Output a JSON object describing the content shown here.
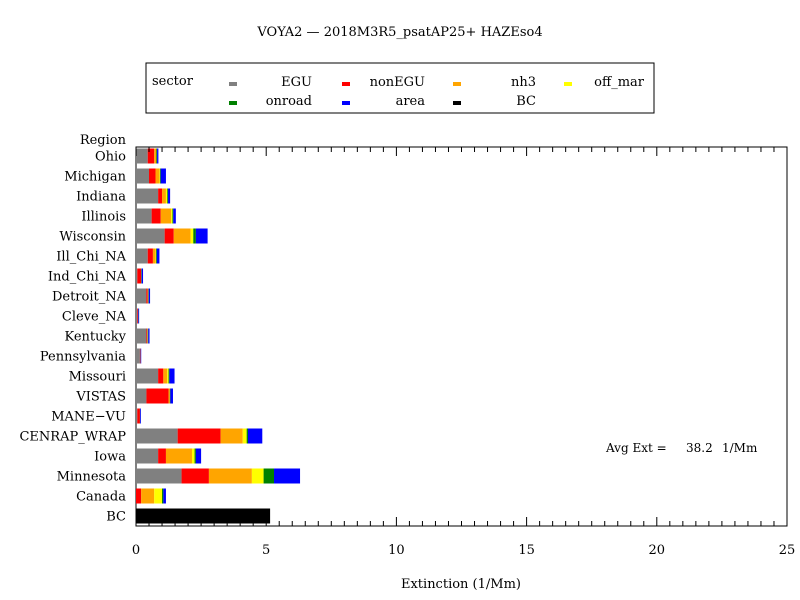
{
  "chart_data": {
    "type": "bar",
    "orientation": "horizontal",
    "stacked": true,
    "title": "VOYA2 — 2018M3R5_psatAP25+ HAZEso4",
    "xlabel": "Extinction (1/Mm)",
    "ylabel": "Region",
    "xlim": [
      0,
      25
    ],
    "x_ticks": [
      0,
      5,
      10,
      15,
      20,
      25
    ],
    "grid": false,
    "legend": {
      "title": "sector",
      "placement": "top",
      "entries": [
        "EGU",
        "nonEGU",
        "nh3",
        "off_mar",
        "onroad",
        "area",
        "BC"
      ]
    },
    "annotation": {
      "label": "Avg Ext =",
      "value": "38.2",
      "unit": "1/Mm"
    },
    "categories": [
      "Ohio",
      "Michigan",
      "Indiana",
      "Illinois",
      "Wisconsin",
      "Ill_Chi_NA",
      "Ind_Chi_NA",
      "Detroit_NA",
      "Cleve_NA",
      "Kentucky",
      "Pennsylvania",
      "Missouri",
      "VISTAS",
      "MANE−VU",
      "CENRAP_WRAP",
      "Iowa",
      "Minnesota",
      "Canada",
      "BC"
    ],
    "series": [
      {
        "name": "EGU",
        "color": "#808080",
        "values": [
          0.45,
          0.5,
          0.85,
          0.6,
          1.1,
          0.45,
          0.05,
          0.4,
          0.05,
          0.4,
          0.15,
          0.85,
          0.4,
          0.05,
          1.6,
          0.85,
          1.75,
          0.0,
          0.0
        ]
      },
      {
        "name": "nonEGU",
        "color": "#ff0000",
        "values": [
          0.25,
          0.25,
          0.15,
          0.35,
          0.35,
          0.2,
          0.15,
          0.05,
          0.03,
          0.03,
          0.02,
          0.2,
          0.85,
          0.1,
          1.65,
          0.3,
          1.05,
          0.2,
          0.0
        ]
      },
      {
        "name": "nh3",
        "color": "#ffa500",
        "values": [
          0.08,
          0.15,
          0.15,
          0.4,
          0.65,
          0.1,
          0.0,
          0.02,
          0.0,
          0.02,
          0.0,
          0.15,
          0.05,
          0.0,
          0.85,
          1.0,
          1.65,
          0.5,
          0.0
        ]
      },
      {
        "name": "off_mar",
        "color": "#ffff00",
        "values": [
          0.0,
          0.02,
          0.05,
          0.05,
          0.1,
          0.02,
          0.0,
          0.0,
          0.0,
          0.0,
          0.0,
          0.05,
          0.0,
          0.0,
          0.15,
          0.1,
          0.45,
          0.3,
          0.0
        ]
      },
      {
        "name": "onroad",
        "color": "#008000",
        "values": [
          0.03,
          0.03,
          0.03,
          0.03,
          0.1,
          0.03,
          0.02,
          0.02,
          0.01,
          0.02,
          0.01,
          0.03,
          0.02,
          0.01,
          0.05,
          0.05,
          0.4,
          0.05,
          0.0
        ]
      },
      {
        "name": "area",
        "color": "#0000ff",
        "values": [
          0.05,
          0.2,
          0.08,
          0.1,
          0.45,
          0.1,
          0.05,
          0.05,
          0.03,
          0.05,
          0.02,
          0.2,
          0.1,
          0.03,
          0.55,
          0.2,
          1.0,
          0.1,
          0.0
        ]
      },
      {
        "name": "BC",
        "color": "#000000",
        "values": [
          0.0,
          0.0,
          0.0,
          0.0,
          0.0,
          0.0,
          0.0,
          0.0,
          0.0,
          0.0,
          0.0,
          0.0,
          0.0,
          0.0,
          0.0,
          0.0,
          0.0,
          0.0,
          5.15
        ]
      }
    ]
  }
}
